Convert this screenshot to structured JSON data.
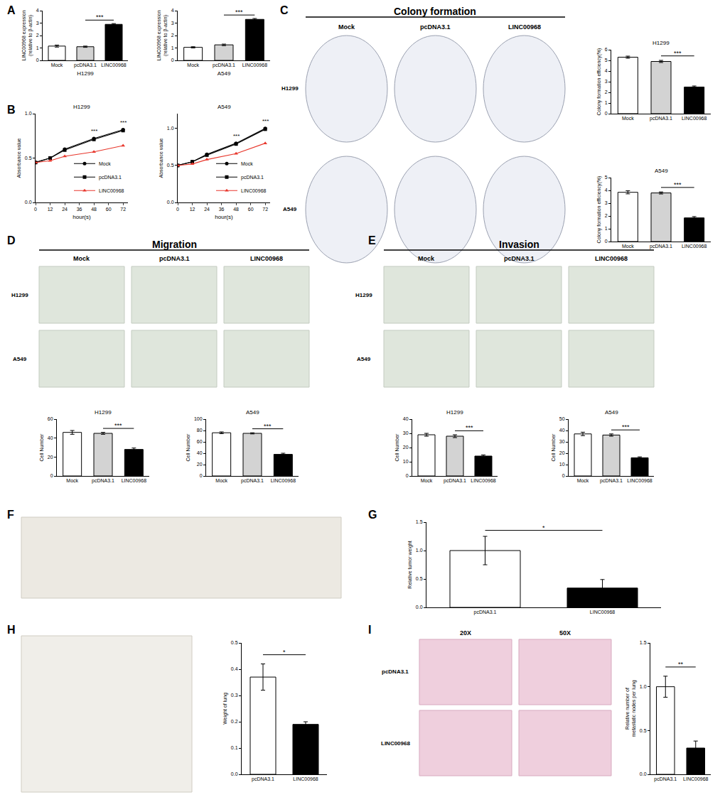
{
  "panel_letters": [
    "A",
    "B",
    "C",
    "D",
    "E",
    "F",
    "G",
    "H",
    "I"
  ],
  "photo_panels": {
    "C": {
      "header": "Colony formation",
      "columns": [
        "Mock",
        "pcDNA3.1",
        "LINC00968"
      ],
      "rows": [
        "H1299",
        "A549"
      ]
    },
    "D": {
      "header": "Migration",
      "columns": [
        "Mock",
        "pcDNA3.1",
        "LINC00968"
      ],
      "rows": [
        "H1299",
        "A549"
      ]
    },
    "E": {
      "header": "Invasion",
      "columns": [
        "Mock",
        "pcDNA3.1",
        "LINC00968"
      ],
      "rows": [
        "H1299",
        "A549"
      ]
    },
    "I": {
      "columns": [
        "20X",
        "50X"
      ],
      "rows": [
        "pcDNA3.1",
        "LINC00968"
      ]
    }
  },
  "chart_data": [
    {
      "type": "bar",
      "xtitle": "H1299",
      "ytitle": "LINC00968 expression\n(relative to β-actin)",
      "categories": [
        "Mock",
        "pcDNA3.1",
        "LINC00968"
      ],
      "values": [
        1.15,
        1.1,
        2.9
      ],
      "errors": [
        0.08,
        0.05,
        0.06
      ],
      "colors": [
        "#ffffff",
        "#d3d3d3",
        "#000000"
      ],
      "ylim": [
        0,
        4
      ],
      "yticks": [
        0,
        1,
        2,
        3,
        4
      ],
      "annotations": [
        {
          "between": [
            "pcDNA3.1",
            "LINC00968"
          ],
          "text": "***"
        }
      ]
    },
    {
      "type": "bar",
      "xtitle": "A549",
      "ytitle": "LINC00968 expression\n(relative to β-actin)",
      "categories": [
        "Mock",
        "pcDNA3.1",
        "LINC00968"
      ],
      "values": [
        1.05,
        1.25,
        3.3
      ],
      "errors": [
        0.05,
        0.06,
        0.07
      ],
      "colors": [
        "#ffffff",
        "#d3d3d3",
        "#000000"
      ],
      "ylim": [
        0,
        4
      ],
      "yticks": [
        0,
        1,
        2,
        3,
        4
      ],
      "annotations": [
        {
          "between": [
            "pcDNA3.1",
            "LINC00968"
          ],
          "text": "***"
        }
      ]
    },
    {
      "type": "line",
      "title": "H1299",
      "xtitle": "hour(s)",
      "ytitle": "Absorbance value",
      "x": [
        0,
        12,
        24,
        48,
        72
      ],
      "xlim": [
        0,
        76
      ],
      "xticks": [
        0,
        12,
        24,
        36,
        48,
        60,
        72
      ],
      "ylim": [
        0,
        1
      ],
      "yticks": [
        {
          "value": 0,
          "label": "0.0"
        },
        0.5,
        {
          "value": 1,
          "label": "1.0"
        }
      ],
      "legend": "lower right",
      "series": [
        {
          "name": "Mock",
          "color": "#000000",
          "marker": "circle",
          "values": [
            0.45,
            0.5,
            0.6,
            0.72,
            0.82
          ]
        },
        {
          "name": "pcDNA3.1",
          "color": "#000000",
          "marker": "square",
          "values": [
            0.45,
            0.5,
            0.59,
            0.71,
            0.81
          ]
        },
        {
          "name": "LINC00968",
          "color": "#e8372c",
          "marker": "triangle-up",
          "values": [
            0.45,
            0.47,
            0.52,
            0.57,
            0.64
          ]
        }
      ],
      "annotations": [
        {
          "x": 48,
          "text": "***"
        },
        {
          "x": 72,
          "text": "***"
        }
      ]
    },
    {
      "type": "line",
      "title": "A549",
      "xtitle": "hour(s)",
      "ytitle": "Absorbance value",
      "x": [
        0,
        12,
        24,
        48,
        72
      ],
      "xlim": [
        0,
        76
      ],
      "xticks": [
        0,
        12,
        24,
        36,
        48,
        60,
        72
      ],
      "ylim": [
        0,
        1.2
      ],
      "yticks": [
        {
          "value": 0,
          "label": "0.0"
        },
        0.5,
        {
          "value": 1,
          "label": "1.0"
        }
      ],
      "legend": "lower right",
      "series": [
        {
          "name": "Mock",
          "color": "#000000",
          "marker": "circle",
          "values": [
            0.5,
            0.55,
            0.65,
            0.8,
            1.0
          ]
        },
        {
          "name": "pcDNA3.1",
          "color": "#000000",
          "marker": "square",
          "values": [
            0.5,
            0.55,
            0.64,
            0.79,
            0.99
          ]
        },
        {
          "name": "LINC00968",
          "color": "#e8372c",
          "marker": "triangle-up",
          "values": [
            0.5,
            0.52,
            0.58,
            0.66,
            0.8
          ]
        }
      ],
      "annotations": [
        {
          "x": 48,
          "text": "***"
        },
        {
          "x": 72,
          "text": "***"
        }
      ]
    },
    {
      "type": "bar",
      "title": "H1299",
      "ytitle": "Colony formation efficiency(%)",
      "categories": [
        "Mock",
        "pcDNA3.1",
        "LINC00968"
      ],
      "values": [
        5.3,
        4.9,
        2.5
      ],
      "errors": [
        0.1,
        0.1,
        0.1
      ],
      "colors": [
        "#ffffff",
        "#d3d3d3",
        "#000000"
      ],
      "ylim": [
        0,
        6
      ],
      "yticks": [
        0,
        1,
        2,
        3,
        4,
        5,
        6
      ],
      "annotations": [
        {
          "between": [
            "pcDNA3.1",
            "LINC00968"
          ],
          "text": "***"
        }
      ]
    },
    {
      "type": "bar",
      "title": "A549",
      "ytitle": "Colony formation efficiency(%)",
      "categories": [
        "Mock",
        "pcDNA3.1",
        "LINC00968"
      ],
      "values": [
        3.85,
        3.8,
        1.85
      ],
      "errors": [
        0.12,
        0.08,
        0.1
      ],
      "colors": [
        "#ffffff",
        "#d3d3d3",
        "#000000"
      ],
      "ylim": [
        0,
        5
      ],
      "yticks": [
        0,
        1,
        2,
        3,
        4,
        5
      ],
      "annotations": [
        {
          "between": [
            "pcDNA3.1",
            "LINC00968"
          ],
          "text": "***"
        }
      ]
    },
    {
      "type": "bar",
      "title": "H1299",
      "ytitle": "Cell Number",
      "categories": [
        "Mock",
        "pcDNA3.1",
        "LINC00968"
      ],
      "values": [
        46,
        45,
        28
      ],
      "errors": [
        2,
        1,
        1.5
      ],
      "colors": [
        "#ffffff",
        "#d3d3d3",
        "#000000"
      ],
      "ylim": [
        0,
        60
      ],
      "yticks": [
        0,
        20,
        40,
        60
      ],
      "annotations": [
        {
          "between": [
            "pcDNA3.1",
            "LINC00968"
          ],
          "text": "***"
        }
      ]
    },
    {
      "type": "bar",
      "title": "A549",
      "ytitle": "Cell Number",
      "categories": [
        "Mock",
        "pcDNA3.1",
        "LINC00968"
      ],
      "values": [
        76,
        75,
        38
      ],
      "errors": [
        1.5,
        1,
        2
      ],
      "colors": [
        "#ffffff",
        "#d3d3d3",
        "#000000"
      ],
      "ylim": [
        0,
        100
      ],
      "yticks": [
        0,
        20,
        40,
        60,
        80,
        100
      ],
      "annotations": [
        {
          "between": [
            "pcDNA3.1",
            "LINC00968"
          ],
          "text": "***"
        }
      ]
    },
    {
      "type": "bar",
      "title": "H1299",
      "ytitle": "Cell Number",
      "categories": [
        "Mock",
        "pcDNA3.1",
        "LINC00968"
      ],
      "values": [
        29,
        28,
        14
      ],
      "errors": [
        1,
        1,
        0.8
      ],
      "colors": [
        "#ffffff",
        "#d3d3d3",
        "#000000"
      ],
      "ylim": [
        0,
        40
      ],
      "yticks": [
        0,
        10,
        20,
        30,
        40
      ],
      "annotations": [
        {
          "between": [
            "pcDNA3.1",
            "LINC00968"
          ],
          "text": "***"
        }
      ]
    },
    {
      "type": "bar",
      "title": "A549",
      "ytitle": "Cell Number",
      "categories": [
        "Mock",
        "pcDNA3.1",
        "LINC00968"
      ],
      "values": [
        37,
        36,
        16
      ],
      "errors": [
        1.5,
        1,
        0.8
      ],
      "colors": [
        "#ffffff",
        "#d3d3d3",
        "#000000"
      ],
      "ylim": [
        0,
        50
      ],
      "yticks": [
        0,
        10,
        20,
        30,
        40,
        50
      ],
      "annotations": [
        {
          "between": [
            "pcDNA3.1",
            "LINC00968"
          ],
          "text": "***"
        }
      ]
    },
    {
      "type": "bar",
      "ytitle": "Relative tumor weight",
      "categories": [
        "pcDNA3.1",
        "LINC00968"
      ],
      "values": [
        1.0,
        0.34
      ],
      "errors": [
        0.25,
        0.15
      ],
      "colors": [
        "#ffffff",
        "#000000"
      ],
      "ylim": [
        0,
        1.5
      ],
      "yticks": [
        {
          "value": 0,
          "label": "0.0"
        },
        0.5,
        {
          "value": 1,
          "label": "1.0"
        },
        1.5
      ],
      "annotations": [
        {
          "between": [
            "pcDNA3.1",
            "LINC00968"
          ],
          "text": "*"
        }
      ]
    },
    {
      "type": "bar",
      "ytitle": "Weight of lung",
      "categories": [
        "pcDNA3.1",
        "LINC00968"
      ],
      "values": [
        0.37,
        0.19
      ],
      "errors": [
        0.05,
        0.01
      ],
      "colors": [
        "#ffffff",
        "#000000"
      ],
      "ylim": [
        0,
        0.5
      ],
      "yticks": [
        {
          "value": 0,
          "label": "0.0"
        },
        0.1,
        0.2,
        0.3,
        0.4,
        0.5
      ],
      "annotations": [
        {
          "between": [
            "pcDNA3.1",
            "LINC00968"
          ],
          "text": "*"
        }
      ]
    },
    {
      "type": "bar",
      "ytitle": "Relative number of\nmetastatic nodes per lung",
      "categories": [
        "pcDNA3.1",
        "LINC00968"
      ],
      "values": [
        1.0,
        0.3
      ],
      "errors": [
        0.12,
        0.08
      ],
      "colors": [
        "#ffffff",
        "#000000"
      ],
      "ylim": [
        0,
        1.5
      ],
      "yticks": [
        {
          "value": 0,
          "label": "0.0"
        },
        0.5,
        {
          "value": 1,
          "label": "1.0"
        },
        1.5
      ],
      "annotations": [
        {
          "between": [
            "pcDNA3.1",
            "LINC00968"
          ],
          "text": "**"
        }
      ]
    }
  ]
}
